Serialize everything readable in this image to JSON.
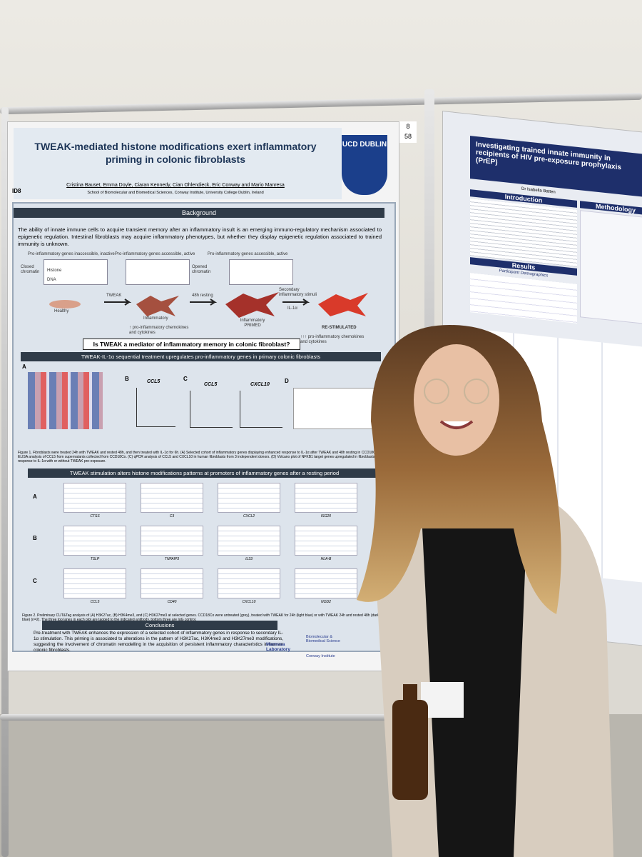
{
  "board": {
    "number_top": "8",
    "number_bottom": "58"
  },
  "poster": {
    "id": "ID8",
    "title": "TWEAK-mediated histone modifications exert inflammatory priming in colonic fibroblasts",
    "authors": "Cristina Bauset, Emma Doyle, Ciaran Kennedy, Cian Ohlendieck, Eric Conway and Mario Manresa",
    "affiliation": "School of Biomolecular and Biomedical Sciences, Conway Institute, University College Dublin, Ireland",
    "logo": "UCD DUBLIN",
    "background": {
      "heading": "Background",
      "text": "The ability of innate immune cells to acquire transient memory after an inflammatory insult is an emerging immuno-regulatory mechanism associated to epigenetic regulation. Intestinal fibroblasts may acquire inflammatory phenotypes, but whether they display epigenetic regulation associated to trained immunity is unknown.",
      "diagram": {
        "state_1": "Pro-inflammatory genes inaccessible, inactive",
        "state_2": "Pro-inflammatory genes accessible, active",
        "state_3": "Pro-inflammatory genes accessible, active",
        "closed": "Closed chromatin",
        "opened": "Opened chromatin",
        "histone": "Histone",
        "dna": "DNA",
        "healthy": "Healthy",
        "tweak": "TWEAK",
        "inflammatory": "Inflammatory",
        "resting": "48h resting",
        "primed": "Inflammatory PRIMED",
        "secondary": "Secondary inflammatory stimuli",
        "il1a": "IL-1α",
        "restimulated": "RE-STIMULATED",
        "effect_1": "↑ pro-inflammatory chemokines and cytokines",
        "effect_2": "↑↑↑ pro-inflammatory chemokines and cytokines"
      },
      "question": "Is TWEAK a mediator of inflammatory memory in colonic fibroblast?"
    },
    "section_1": {
      "heading": "TWEAK-IL-1α sequential treatment upregulates pro-inflammatory genes in primary colonic fibroblasts",
      "panels": [
        "A",
        "B",
        "C",
        "D"
      ],
      "plots": [
        "CCL5",
        "CCL5",
        "CXCL10"
      ],
      "caption": "Figure 1. Fibroblasts were treated 24h with TWEAK and rested 48h, and then treated with IL-1α for 6h. (A) Selected cohort of inflammatory genes displaying enhanced response to IL-1α after TWEAK and 48h resting in CCD18Co. (B) ELISA analysis of CCL5 from supernatants collected from CCD18Co. (C) qPCR analysis of CCL5 and CXCL10 in human fibroblasts from 3 independent donors. (D) Volcano plot of NFKB1 target genes upregulated in fibroblasts in response to IL-1α with or without TWEAK pre-exposure."
    },
    "section_2": {
      "heading": "TWEAK stimulation alters histone modifications patterns at promoters of inflammatory genes after a resting period",
      "rows": [
        "A",
        "B",
        "C"
      ],
      "genes": [
        "CTSS",
        "C3",
        "CXCL2",
        "ISG20",
        "TSLP",
        "TNFAIP3",
        "IL33",
        "HLA-B",
        "CCL5",
        "CD40",
        "CXCL10",
        "NOD2"
      ],
      "caption": "Figure 2. Preliminary CUT&Tag analysis of (A) H3K27ac, (B) H3K4me3, and (C) H3K27me3 at selected genes. CCD18Co were untreated (grey), treated with TWEAK for 24h (light blue) or with TWEAK 24h and rested 48h (dark blue) (n=2). The three top lanes in each plot are tagged to the indicated antibody, bottom three are IgG control."
    },
    "conclusions": {
      "heading": "Conclusions",
      "text": "Pre-treatment with TWEAK enhances the expression of a selected cohort of inflammatory genes in response to secondary IL-1α stimulation. This priming is associated to alterations in the pattern of H3K27ac, H3K4me3 and H3K27me3 modifications, suggesting the involvement of chromatin remodelling in the acquisition of persistent inflammatory characteristics in human colonic fibroblasts."
    },
    "logos": {
      "lab": "Manresa Laboratory",
      "school": "Biomolecular & Biomedical Science",
      "institute": "Conway Institute"
    }
  },
  "right_poster": {
    "title": "Investigating trained innate immunity in recipients of HIV pre-exposure prophylaxis (PrEP)",
    "authors": "Dr Isabella Batten",
    "introduction": "Introduction",
    "methodology": "Methodology",
    "results": "Results",
    "demographics": "Participant Demographics"
  }
}
